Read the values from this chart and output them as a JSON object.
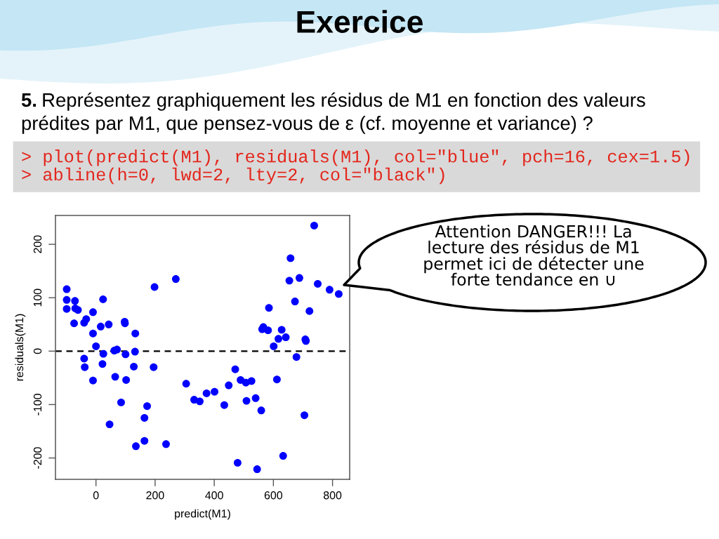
{
  "chart_data": {
    "type": "scatter",
    "title": "Exercice",
    "subtitle": "5. Représentez graphiquement les résidus de M1 en fonction des valeurs\nprédites par M1, que pensez-vous de ε (cf. moyenne et variance) ?",
    "xlabel": "predict(M1)",
    "ylabel": "residuals(M1)",
    "annotations": [
      "> plot(predict(M1), residuals(M1), col=\"blue\", pch=16, cex=1.5)",
      "> abline(h=0, lwd=2, lty=2, col=\"black\")",
      "Attention DANGER!!! La\nlecture des résidus de M1\npermet ici de détecter une\nforte tendance en ∪"
    ],
    "x": [
      -99,
      -99,
      -99,
      -71,
      -70,
      -61,
      -74,
      -40,
      -33,
      -10,
      24,
      -10,
      16,
      43,
      97,
      98,
      133,
      0,
      -40,
      -38,
      25,
      22,
      62,
      71,
      100,
      132,
      128,
      -10,
      65,
      102,
      195,
      198,
      270,
      85,
      173,
      164,
      46,
      164,
      135,
      237,
      305,
      332,
      351,
      374,
      401,
      434,
      449,
      471,
      489,
      507,
      526,
      509,
      540,
      559,
      479,
      545,
      633,
      612,
      705,
      678,
      601,
      617,
      642,
      628,
      562,
      566,
      582,
      708,
      710,
      585,
      673,
      722,
      654,
      688,
      658,
      750,
      790,
      821,
      738
    ],
    "series": [
      {
        "color": "#0000ff",
        "values": [
          116,
          96,
          79,
          94,
          80,
          77,
          52,
          53,
          60,
          73,
          97,
          33,
          46,
          50,
          55,
          52,
          33,
          9,
          -14,
          -30,
          -5,
          -24,
          1,
          3,
          -6,
          -1,
          -29,
          -55,
          -48,
          -54,
          -30,
          120,
          135,
          -96,
          -103,
          -125,
          -137,
          -168,
          -178,
          -174,
          -61,
          -91,
          -94,
          -79,
          -76,
          -101,
          -64,
          -34,
          -54,
          -59,
          -56,
          -93,
          -88,
          -111,
          -209,
          -221,
          -196,
          -53,
          -120,
          -11,
          9,
          23,
          26,
          40,
          41,
          45,
          39,
          22,
          19,
          81,
          93,
          75,
          132,
          137,
          174,
          126,
          115,
          107,
          235
        ]
      }
    ],
    "marker": "circle",
    "xlim": [
      -137,
      858
    ],
    "ylim": [
      -240,
      254
    ],
    "xticks": [
      0,
      200,
      400,
      600,
      800
    ],
    "yticks": [
      -200,
      -100,
      0,
      100,
      200
    ],
    "ref_lines": [
      {
        "axis": "y",
        "value": 0,
        "color": "#000000",
        "line_style": "dashed"
      }
    ]
  }
}
